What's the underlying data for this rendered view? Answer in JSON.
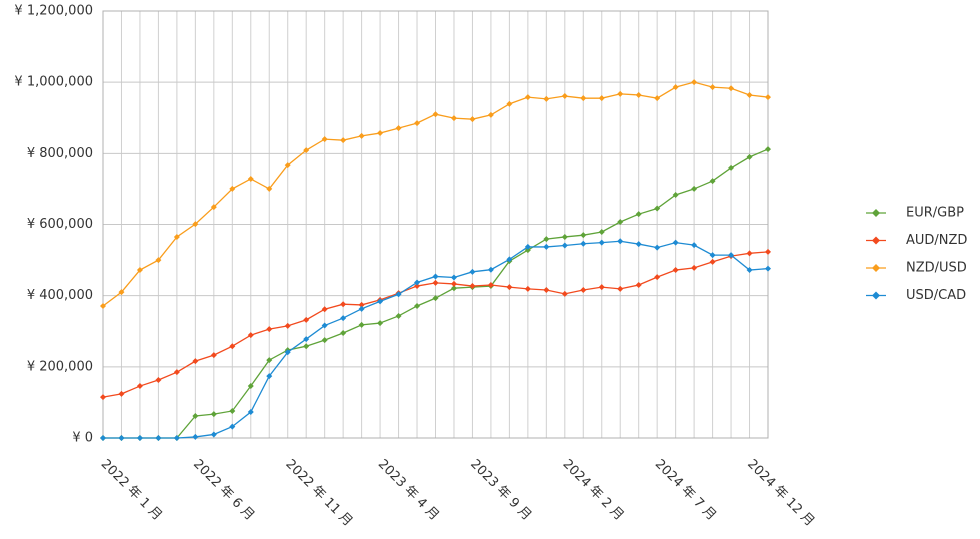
{
  "chart_data": {
    "type": "line",
    "categories": [
      "2022 年 1 月",
      null,
      null,
      null,
      null,
      "2022 年 6 月",
      null,
      null,
      null,
      null,
      "2022 年 11 月",
      null,
      null,
      null,
      null,
      "2023 年 4 月",
      null,
      null,
      null,
      null,
      "2023 年 9 月",
      null,
      null,
      null,
      null,
      "2024 年 2 月",
      null,
      null,
      null,
      null,
      "2024 年 7 月",
      null,
      null,
      null,
      null,
      "2024 年 12 月",
      null
    ],
    "series": [
      {
        "name": "EUR/GBP",
        "color": "#5fa339",
        "values": [
          0,
          0,
          0,
          0,
          0,
          62000,
          67000,
          76000,
          146000,
          219000,
          247000,
          258000,
          275000,
          295000,
          318000,
          323000,
          343000,
          371000,
          393000,
          421000,
          424000,
          427000,
          497000,
          528000,
          559000,
          565000,
          570000,
          579000,
          607000,
          629000,
          645000,
          683000,
          700000,
          722000,
          759000,
          790000,
          812000
        ]
      },
      {
        "name": "AUD/NZD",
        "color": "#f24a1e",
        "values": [
          115000,
          124000,
          146000,
          163000,
          185000,
          216000,
          233000,
          258000,
          289000,
          306000,
          315000,
          332000,
          362000,
          376000,
          374000,
          388000,
          407000,
          427000,
          436000,
          433000,
          427000,
          430000,
          424000,
          419000,
          416000,
          405000,
          416000,
          424000,
          419000,
          430000,
          452000,
          472000,
          478000,
          495000,
          511000,
          519000,
          523000
        ]
      },
      {
        "name": "NZD/USD",
        "color": "#f99d1c",
        "values": [
          371000,
          410000,
          472000,
          500000,
          565000,
          601000,
          649000,
          700000,
          728000,
          700000,
          767000,
          809000,
          840000,
          837000,
          849000,
          857000,
          871000,
          885000,
          910000,
          899000,
          896000,
          908000,
          939000,
          958000,
          953000,
          961000,
          955000,
          955000,
          967000,
          964000,
          955000,
          986000,
          1000000,
          986000,
          983000,
          964000,
          958000
        ]
      },
      {
        "name": "USD/CAD",
        "color": "#1e8bd3",
        "values": [
          0,
          0,
          0,
          0,
          0,
          3000,
          10000,
          32000,
          73000,
          174000,
          241000,
          278000,
          316000,
          337000,
          363000,
          384000,
          404000,
          437000,
          454000,
          451000,
          467000,
          473000,
          502000,
          537000,
          537000,
          541000,
          546000,
          549000,
          553000,
          545000,
          535000,
          549000,
          542000,
          514000,
          514000,
          472000,
          476000
        ]
      }
    ],
    "ylim": [
      0,
      1200000
    ],
    "yticks": [
      {
        "value": 0,
        "label": "¥ 0"
      },
      {
        "value": 200000,
        "label": "¥ 200,000"
      },
      {
        "value": 400000,
        "label": "¥ 400,000"
      },
      {
        "value": 600000,
        "label": "¥ 600,000"
      },
      {
        "value": 800000,
        "label": "¥ 800,000"
      },
      {
        "value": 1000000,
        "label": "¥ 1,000,000"
      },
      {
        "value": 1200000,
        "label": "¥ 1,200,000"
      }
    ],
    "grid": true,
    "legend": "right"
  }
}
